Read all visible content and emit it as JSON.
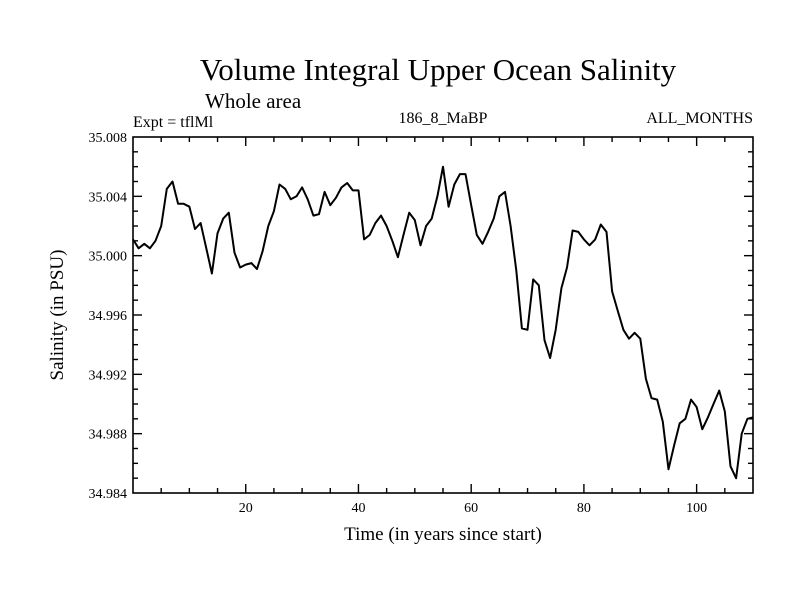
{
  "chart_data": {
    "type": "line",
    "title": "Volume Integral Upper Ocean Salinity",
    "subtitle": "Whole area",
    "experiment": "Expt = tflMl",
    "run_id": "186_8_MaBP",
    "months": "ALL_MONTHS",
    "xlabel": "Time (in years since start)",
    "ylabel": "Salinity (in PSU)",
    "xlim": [
      0,
      110
    ],
    "ylim": [
      34.984,
      35.008
    ],
    "xticks": [
      20,
      40,
      60,
      80,
      100
    ],
    "xtick_labels": [
      "20",
      "40",
      "60",
      "80",
      "100"
    ],
    "yticks": [
      34.984,
      34.988,
      34.992,
      34.996,
      35.0,
      35.004,
      35.008
    ],
    "ytick_labels": [
      "34.984",
      "34.988",
      "34.992",
      "34.996",
      "35.000",
      "35.004",
      "35.008"
    ],
    "grid": false,
    "series": [
      {
        "name": "Salinity",
        "color": "#000000",
        "x": [
          0,
          1,
          2,
          3,
          4,
          5,
          6,
          7,
          8,
          9,
          10,
          11,
          12,
          13,
          14,
          15,
          16,
          17,
          18,
          19,
          20,
          21,
          22,
          23,
          24,
          25,
          26,
          27,
          28,
          29,
          30,
          31,
          32,
          33,
          34,
          35,
          36,
          37,
          38,
          39,
          40,
          41,
          42,
          43,
          44,
          45,
          46,
          47,
          48,
          49,
          50,
          51,
          52,
          53,
          54,
          55,
          56,
          57,
          58,
          59,
          60,
          61,
          62,
          63,
          64,
          65,
          66,
          67,
          68,
          69,
          70,
          71,
          72,
          73,
          74,
          75,
          76,
          77,
          78,
          79,
          80,
          81,
          82,
          83,
          84,
          85,
          86,
          87,
          88,
          89,
          90,
          91,
          92,
          93,
          94,
          95,
          96,
          97,
          98,
          99,
          100,
          101,
          102,
          103,
          104,
          105,
          106,
          107,
          108,
          109,
          110
        ],
        "values": [
          35.0011,
          35.0005,
          35.0008,
          35.0005,
          35.001,
          35.002,
          35.0045,
          35.005,
          35.0035,
          35.0035,
          35.0033,
          35.0018,
          35.0022,
          35.0005,
          34.9988,
          35.0015,
          35.0025,
          35.0029,
          35.0002,
          34.9992,
          34.9994,
          34.9995,
          34.9991,
          35.0003,
          35.002,
          35.003,
          35.0048,
          35.0045,
          35.0038,
          35.004,
          35.0046,
          35.0038,
          35.0027,
          35.0028,
          35.0043,
          35.0034,
          35.0039,
          35.0046,
          35.0049,
          35.0044,
          35.0044,
          35.0011,
          35.0014,
          35.0022,
          35.0027,
          35.002,
          35.001,
          34.9999,
          35.0014,
          35.0029,
          35.0024,
          35.0007,
          35.002,
          35.0025,
          35.004,
          35.006,
          35.0033,
          35.0048,
          35.0055,
          35.0055,
          35.0034,
          35.0014,
          35.0008,
          35.0016,
          35.0025,
          35.004,
          35.0043,
          35.002,
          34.999,
          34.9951,
          34.995,
          34.9984,
          34.998,
          34.9943,
          34.9931,
          34.995,
          34.9978,
          34.9992,
          35.0017,
          35.0016,
          35.0011,
          35.0007,
          35.0011,
          35.0021,
          35.0016,
          34.9976,
          34.9963,
          34.995,
          34.9944,
          34.9948,
          34.9944,
          34.9917,
          34.9904,
          34.9903,
          34.9888,
          34.9856,
          34.9872,
          34.9887,
          34.989,
          34.9903,
          34.9898,
          34.9883,
          34.9891,
          34.99,
          34.9909,
          34.9895,
          34.9858,
          34.985,
          34.988,
          34.989,
          34.9891
        ]
      }
    ]
  }
}
